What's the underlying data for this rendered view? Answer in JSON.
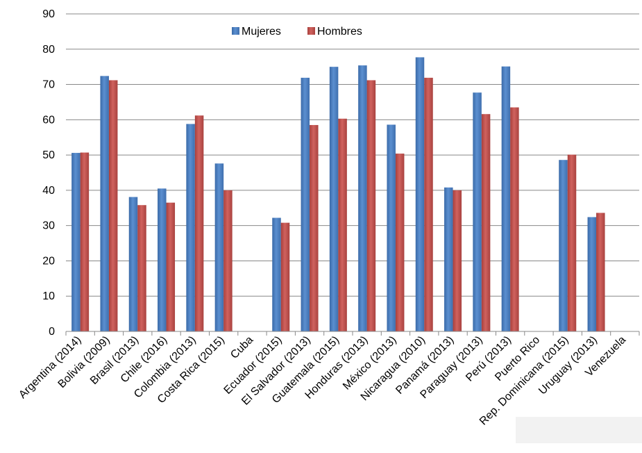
{
  "chart_data": {
    "type": "bar",
    "categories": [
      "Argentina (2014)",
      "Bolivia  (2009)",
      "Brasil (2013)",
      "Chile (2016)",
      "Colombia (2013)",
      "Costa Rica (2015)",
      "Cuba",
      "Ecuador (2015)",
      "El Salvador (2013)",
      "Guatemala (2015)",
      "Honduras (2013)",
      "México (2013)",
      "Nicaragua (2010)",
      "Panamá (2013)",
      "Paraguay (2013)",
      "Perú (2013)",
      "Puerto Rico",
      "Rep. Dominicana (2015)",
      "Uruguay (2013)",
      "Venezuela"
    ],
    "series": [
      {
        "name": "Mujeres",
        "color": "#4f81bd",
        "values": [
          50.6,
          72.4,
          38.1,
          40.5,
          58.8,
          47.6,
          null,
          32.2,
          71.9,
          75.0,
          75.4,
          58.6,
          77.7,
          40.8,
          67.7,
          75.1,
          null,
          48.6,
          32.4,
          null
        ]
      },
      {
        "name": "Hombres",
        "color": "#c0504d",
        "values": [
          50.7,
          71.2,
          35.8,
          36.5,
          61.2,
          40.0,
          null,
          30.8,
          58.5,
          60.3,
          71.2,
          50.4,
          71.9,
          40.0,
          61.6,
          63.5,
          null,
          50.1,
          33.6,
          null
        ]
      }
    ],
    "ylim": [
      0,
      90
    ],
    "yticks": [
      "0",
      "10",
      "20",
      "30",
      "40",
      "50",
      "60",
      "70",
      "80",
      "90"
    ],
    "grid": true,
    "legend_position": "top-center"
  }
}
